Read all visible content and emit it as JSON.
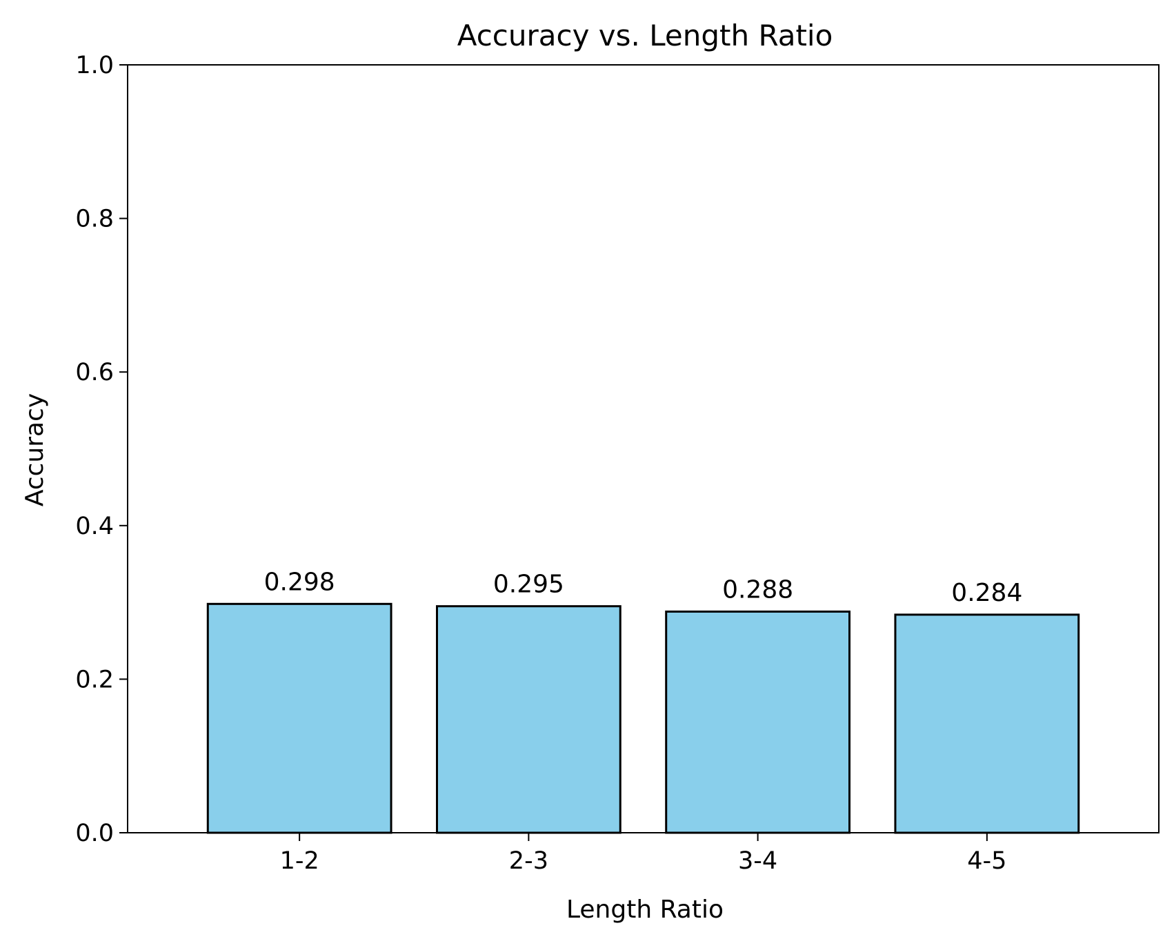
{
  "chart_data": {
    "type": "bar",
    "title": "Accuracy vs. Length Ratio",
    "xlabel": "Length Ratio",
    "ylabel": "Accuracy",
    "categories": [
      "1-2",
      "2-3",
      "3-4",
      "4-5"
    ],
    "values": [
      0.298,
      0.295,
      0.288,
      0.284
    ],
    "value_labels": [
      "0.298",
      "0.295",
      "0.288",
      "0.284"
    ],
    "ylim": [
      0,
      1.0
    ],
    "yticks": [
      0.0,
      0.2,
      0.4,
      0.6,
      0.8,
      1.0
    ],
    "ytick_labels": [
      "0.0",
      "0.2",
      "0.4",
      "0.6",
      "0.8",
      "1.0"
    ],
    "grid": false,
    "legend": "none",
    "colors": {
      "bar_fill": "#89CFEB",
      "bar_edge": "#000000"
    }
  }
}
